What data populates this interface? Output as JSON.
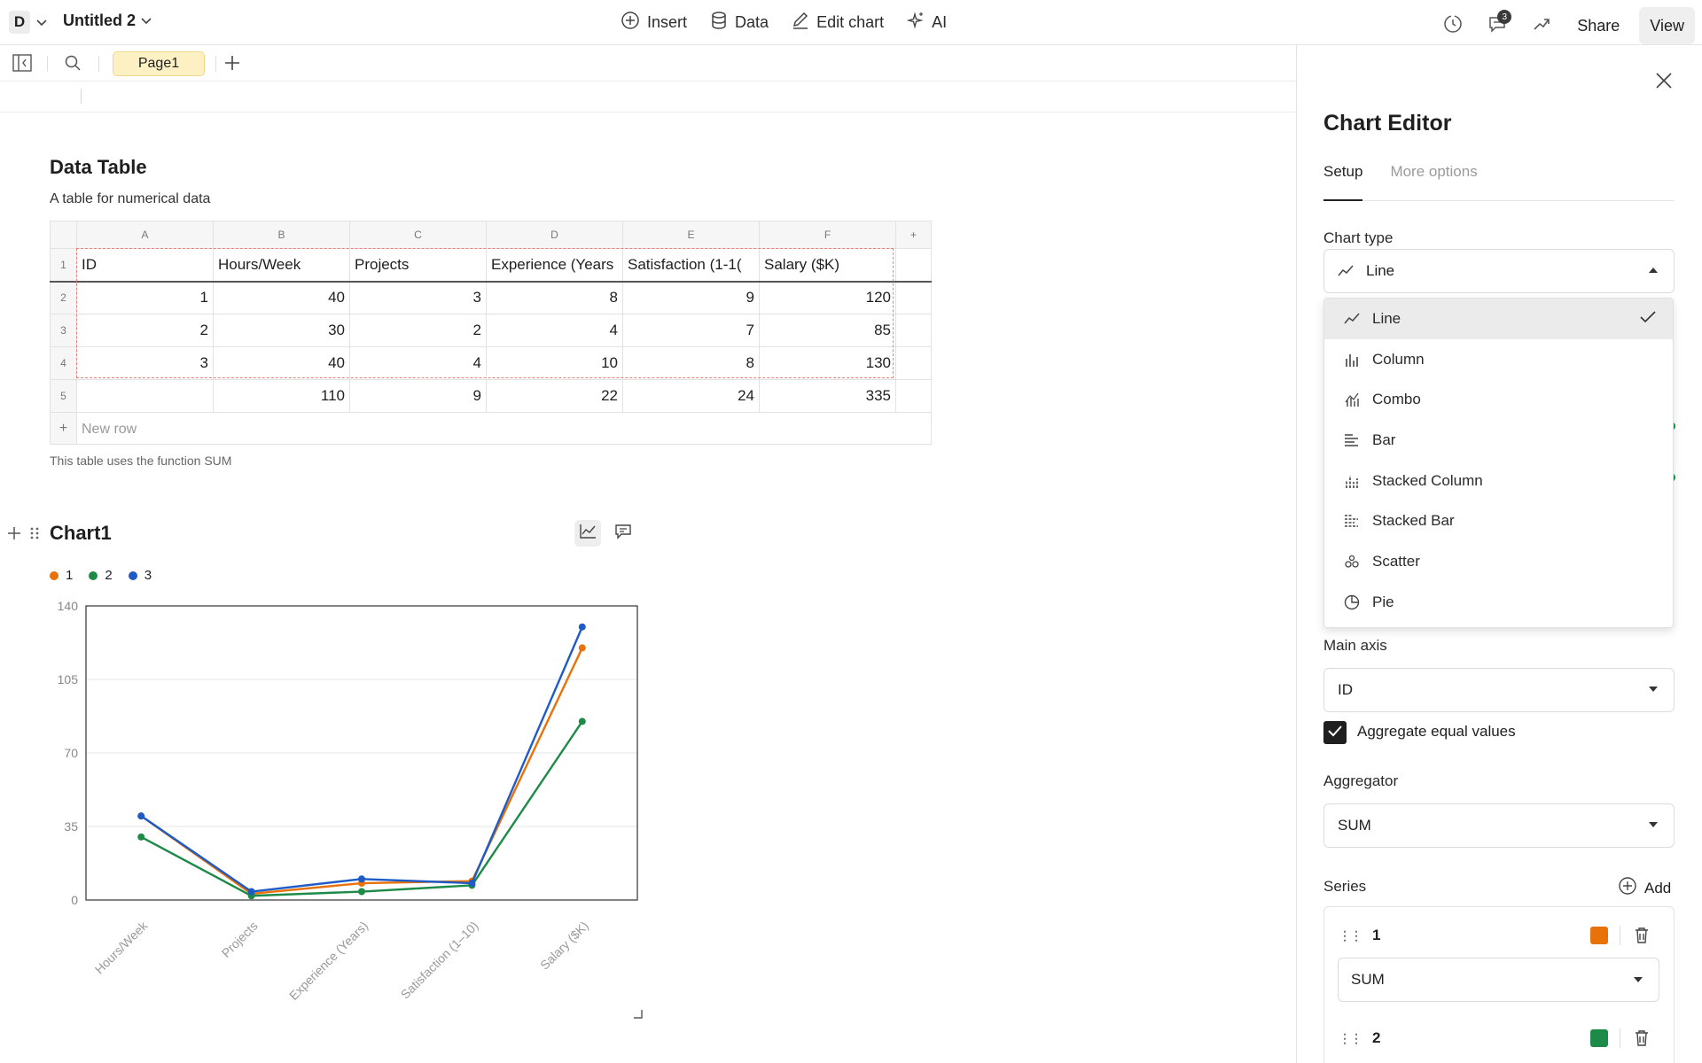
{
  "topbar": {
    "workspace_initial": "D",
    "doc_title": "Untitled 2",
    "actions": [
      {
        "label": "Insert",
        "icon": "plus-circle-icon"
      },
      {
        "label": "Data",
        "icon": "database-icon"
      },
      {
        "label": "Edit chart",
        "icon": "pencil-icon"
      },
      {
        "label": "AI",
        "icon": "sparkle-icon"
      }
    ],
    "notification_count": "3",
    "share_label": "Share",
    "view_label": "View"
  },
  "tabbar": {
    "page_tab": "Page1"
  },
  "table_section": {
    "title": "Data Table",
    "description": "A table for numerical data",
    "note": "This table uses the function SUM",
    "column_letters": [
      "A",
      "B",
      "C",
      "D",
      "E",
      "F"
    ],
    "row_numbers": [
      "1",
      "2",
      "3",
      "4",
      "5"
    ],
    "headers": [
      "ID",
      "Hours/Week",
      "Projects",
      "Experience (Years",
      "Satisfaction (1-1(",
      "Salary ($K)"
    ],
    "rows": [
      [
        "1",
        "40",
        "3",
        "8",
        "9",
        "120"
      ],
      [
        "2",
        "30",
        "2",
        "4",
        "7",
        "85"
      ],
      [
        "3",
        "40",
        "4",
        "10",
        "8",
        "130"
      ]
    ],
    "totals": [
      "",
      "110",
      "9",
      "22",
      "24",
      "335"
    ],
    "new_row_label": "New row"
  },
  "chart_section": {
    "title": "Chart1"
  },
  "chart_data": {
    "type": "line",
    "categories": [
      "Hours/Week",
      "Projects",
      "Experience (Years)",
      "Satisfaction (1–10)",
      "Salary ($K)"
    ],
    "series": [
      {
        "name": "1",
        "values": [
          40,
          3,
          8,
          9,
          120
        ],
        "color": "#e8710a"
      },
      {
        "name": "2",
        "values": [
          30,
          2,
          4,
          7,
          85
        ],
        "color": "#1e8a48"
      },
      {
        "name": "3",
        "values": [
          40,
          4,
          10,
          8,
          130
        ],
        "color": "#1f5bc6"
      }
    ],
    "y_ticks": [
      "0",
      "35",
      "70",
      "105",
      "140"
    ],
    "ylim": [
      0,
      140
    ],
    "grid": true,
    "legend_position": "top-left",
    "title": "",
    "xlabel": "",
    "ylabel": ""
  },
  "panel": {
    "title": "Chart Editor",
    "tabs": [
      "Setup",
      "More options"
    ],
    "chart_type_label": "Chart type",
    "chart_type_value": "Line",
    "chart_type_options": [
      {
        "label": "Line",
        "icon": "line-chart-icon",
        "selected": true
      },
      {
        "label": "Column",
        "icon": "column-chart-icon",
        "selected": false
      },
      {
        "label": "Combo",
        "icon": "combo-chart-icon",
        "selected": false
      },
      {
        "label": "Bar",
        "icon": "bar-chart-icon",
        "selected": false
      },
      {
        "label": "Stacked Column",
        "icon": "stacked-column-icon",
        "selected": false
      },
      {
        "label": "Stacked Bar",
        "icon": "stacked-bar-icon",
        "selected": false
      },
      {
        "label": "Scatter",
        "icon": "scatter-chart-icon",
        "selected": false
      },
      {
        "label": "Pie",
        "icon": "pie-chart-icon",
        "selected": false
      }
    ],
    "main_axis_label": "Main axis",
    "main_axis_value": "ID",
    "aggregate_label": "Aggregate equal values",
    "aggregate_checked": true,
    "aggregator_label": "Aggregator",
    "aggregator_value": "SUM",
    "series_label": "Series",
    "add_label": "Add",
    "series": [
      {
        "name": "1",
        "color": "#e8710a",
        "aggregator": "SUM"
      },
      {
        "name": "2",
        "color": "#1e8a48"
      }
    ]
  }
}
